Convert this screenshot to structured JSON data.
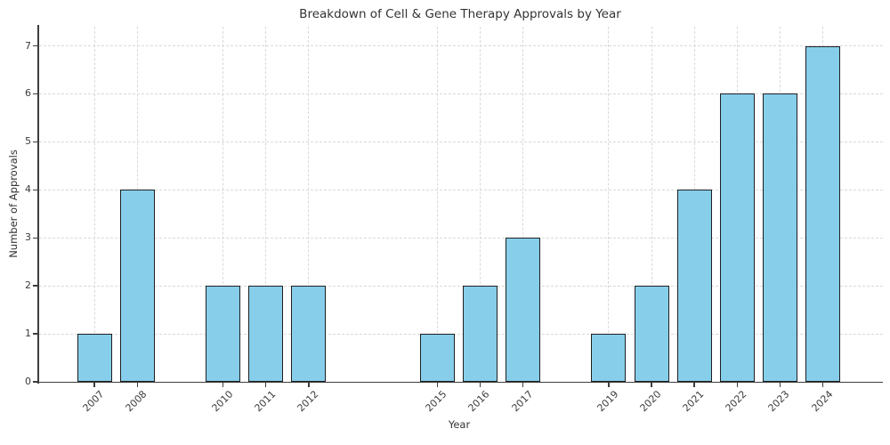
{
  "chart_data": {
    "type": "bar",
    "title": "Breakdown of Cell & Gene Therapy Approvals by Year",
    "xlabel": "Year",
    "ylabel": "Number of Approvals",
    "categories": [
      "2007",
      "2008",
      "2010",
      "2011",
      "2012",
      "2015",
      "2016",
      "2017",
      "2019",
      "2020",
      "2021",
      "2022",
      "2023",
      "2024"
    ],
    "x": [
      2007,
      2008,
      2010,
      2011,
      2012,
      2015,
      2016,
      2017,
      2019,
      2020,
      2021,
      2022,
      2023,
      2024
    ],
    "values": [
      1,
      4,
      2,
      2,
      2,
      1,
      2,
      3,
      1,
      2,
      4,
      6,
      6,
      7
    ],
    "yticks": [
      "0",
      "1",
      "2",
      "3",
      "4",
      "5",
      "6",
      "7"
    ],
    "ylim": [
      0,
      7.4
    ],
    "xlim": [
      2005.7,
      2025.4
    ],
    "grid": true,
    "legend": "none",
    "bar_color": "#87CEEB",
    "bar_edge_color": "#1f1f1f",
    "axis_color": "#3d3d3d",
    "grid_color": "#d9d9d9",
    "text_color": "#333333"
  }
}
